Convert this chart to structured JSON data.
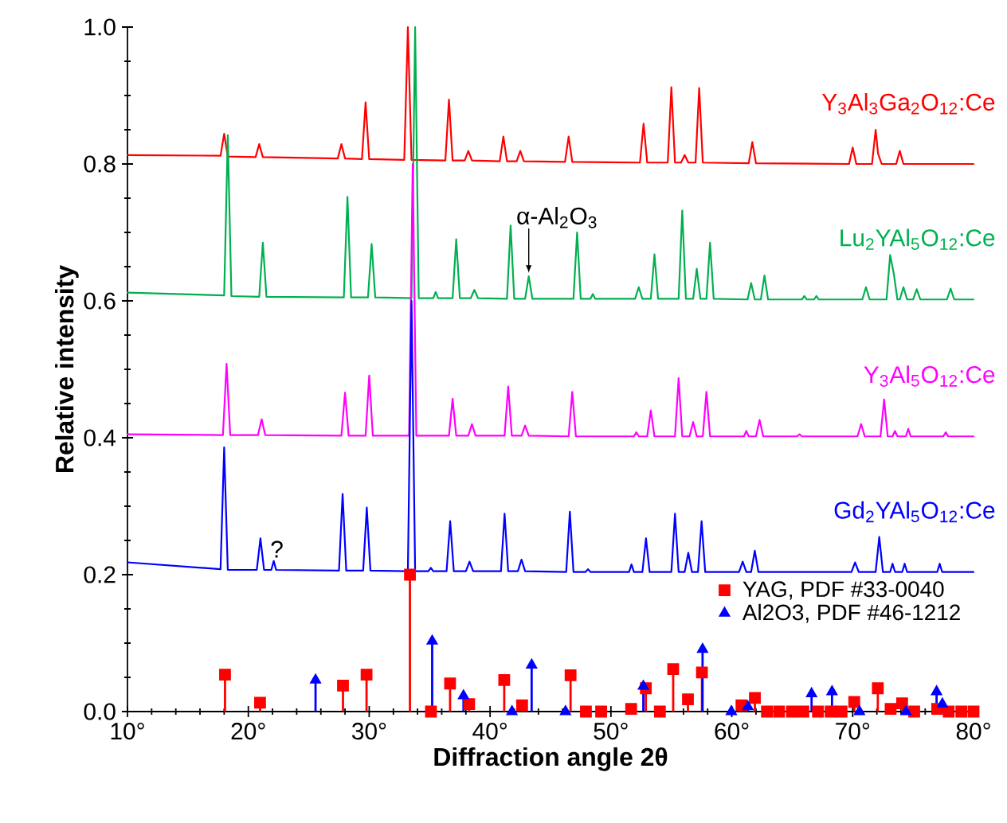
{
  "chart_data": {
    "type": "line",
    "xlabel": "Diffraction angle 2θ",
    "ylabel": "Relative intensity",
    "xlim": [
      10,
      80
    ],
    "ylim": [
      0,
      1
    ],
    "xticks": [
      {
        "value": 10,
        "label": "10°"
      },
      {
        "value": 20,
        "label": "20°"
      },
      {
        "value": 30,
        "label": "30°"
      },
      {
        "value": 40,
        "label": "40°"
      },
      {
        "value": 50,
        "label": "50°"
      },
      {
        "value": 60,
        "label": "60°"
      },
      {
        "value": 70,
        "label": "70°"
      },
      {
        "value": 80,
        "label": "80°"
      }
    ],
    "yticks": [
      {
        "value": 0,
        "label": "0.0"
      },
      {
        "value": 0.2,
        "label": "0.2"
      },
      {
        "value": 0.4,
        "label": "0.4"
      },
      {
        "value": 0.6,
        "label": "0.6"
      },
      {
        "value": 0.8,
        "label": "0.8"
      },
      {
        "value": 1,
        "label": "1.0"
      }
    ],
    "legend": "right",
    "annotations": [
      {
        "text": "α-Al$_{2}$O$_{3}$",
        "x": 43.2,
        "y": 0.636
      },
      {
        "text": "?",
        "x": 22.1,
        "y": 0.22
      }
    ],
    "series": [
      {
        "name": "Y$_{3}$Al$_{3}$Ga$_{2}$O$_{12}$:Ce",
        "color": "#ff0000",
        "x": [
          10,
          17.7,
          18.0,
          18.3,
          20.6,
          20.9,
          21.2,
          27.4,
          27.7,
          28.0,
          29.4,
          29.7,
          30.0,
          32.9,
          33.2,
          33.5,
          36.3,
          36.6,
          36.9,
          37.9,
          38.2,
          38.5,
          40.8,
          41.1,
          41.4,
          42.2,
          42.5,
          42.8,
          46.2,
          46.5,
          46.8,
          52.4,
          52.7,
          53.0,
          54.7,
          55.0,
          55.3,
          55.8,
          56.1,
          56.4,
          57.0,
          57.3,
          57.6,
          61.4,
          61.7,
          62.0,
          69.7,
          70.0,
          70.3,
          71.6,
          71.9,
          72.1,
          72.4,
          73.6,
          73.9,
          74.2,
          80
        ],
        "values": [
          0.813,
          0.812,
          0.844,
          0.811,
          0.81,
          0.829,
          0.81,
          0.808,
          0.829,
          0.808,
          0.807,
          0.89,
          0.807,
          0.806,
          1.0,
          0.806,
          0.805,
          0.894,
          0.805,
          0.805,
          0.819,
          0.805,
          0.804,
          0.84,
          0.804,
          0.804,
          0.819,
          0.804,
          0.803,
          0.84,
          0.803,
          0.802,
          0.859,
          0.802,
          0.802,
          0.912,
          0.802,
          0.802,
          0.813,
          0.802,
          0.802,
          0.911,
          0.802,
          0.801,
          0.832,
          0.801,
          0.8,
          0.824,
          0.8,
          0.8,
          0.85,
          0.815,
          0.8,
          0.8,
          0.819,
          0.8,
          0.8
        ]
      },
      {
        "name": "Lu$_{2}$YAl$_{5}$O$_{12}$:Ce",
        "color": "#00b050",
        "x": [
          10,
          18.0,
          18.3,
          18.6,
          20.9,
          21.2,
          21.5,
          27.9,
          28.2,
          28.5,
          29.9,
          30.2,
          30.5,
          33.5,
          33.8,
          34.1,
          35.3,
          35.5,
          35.7,
          36.9,
          37.2,
          37.5,
          38.4,
          38.7,
          39.0,
          41.4,
          41.7,
          42.0,
          42.9,
          43.2,
          43.5,
          46.9,
          47.2,
          47.5,
          48.3,
          48.5,
          48.7,
          52.0,
          52.3,
          52.6,
          53.3,
          53.6,
          53.9,
          55.6,
          55.9,
          56.2,
          56.8,
          57.1,
          57.4,
          57.9,
          58.2,
          58.5,
          61.3,
          61.6,
          61.9,
          62.4,
          62.7,
          63.0,
          65.8,
          66.0,
          66.2,
          66.8,
          67.0,
          67.2,
          70.8,
          71.1,
          71.4,
          72.8,
          73.1,
          73.4,
          73.7,
          73.9,
          74.2,
          74.5,
          75.0,
          75.3,
          75.6,
          77.8,
          78.1,
          78.4,
          80
        ],
        "values": [
          0.612,
          0.608,
          0.842,
          0.607,
          0.606,
          0.685,
          0.606,
          0.605,
          0.752,
          0.605,
          0.605,
          0.683,
          0.605,
          0.604,
          1.0,
          0.604,
          0.604,
          0.613,
          0.604,
          0.604,
          0.69,
          0.604,
          0.604,
          0.616,
          0.604,
          0.603,
          0.71,
          0.603,
          0.603,
          0.636,
          0.603,
          0.603,
          0.7,
          0.603,
          0.603,
          0.61,
          0.603,
          0.603,
          0.62,
          0.603,
          0.603,
          0.668,
          0.603,
          0.603,
          0.732,
          0.603,
          0.603,
          0.647,
          0.603,
          0.603,
          0.685,
          0.603,
          0.602,
          0.626,
          0.602,
          0.602,
          0.637,
          0.602,
          0.602,
          0.607,
          0.602,
          0.602,
          0.607,
          0.602,
          0.602,
          0.62,
          0.602,
          0.602,
          0.667,
          0.64,
          0.602,
          0.602,
          0.62,
          0.602,
          0.602,
          0.617,
          0.602,
          0.602,
          0.618,
          0.602,
          0.602
        ]
      },
      {
        "name": "Y$_{3}$Al$_{5}$O$_{12}$:Ce",
        "color": "#ff00ff",
        "x": [
          10,
          17.9,
          18.2,
          18.5,
          20.8,
          21.1,
          21.4,
          27.7,
          28.0,
          28.3,
          29.7,
          30.0,
          30.3,
          33.3,
          33.6,
          33.9,
          36.6,
          36.9,
          37.2,
          38.2,
          38.5,
          38.8,
          41.2,
          41.5,
          41.8,
          42.6,
          42.9,
          43.2,
          46.5,
          46.8,
          47.1,
          51.9,
          52.1,
          52.3,
          53.0,
          53.3,
          53.6,
          55.3,
          55.6,
          55.9,
          56.5,
          56.8,
          57.1,
          57.6,
          57.9,
          58.2,
          61.0,
          61.2,
          61.4,
          62.0,
          62.3,
          62.6,
          65.4,
          65.6,
          65.8,
          70.4,
          70.7,
          71.0,
          72.3,
          72.6,
          72.9,
          73.3,
          73.5,
          73.7,
          74.4,
          74.6,
          74.8,
          77.5,
          77.7,
          77.9,
          80
        ],
        "values": [
          0.405,
          0.404,
          0.508,
          0.404,
          0.404,
          0.427,
          0.404,
          0.403,
          0.466,
          0.403,
          0.403,
          0.491,
          0.403,
          0.403,
          0.8,
          0.403,
          0.403,
          0.457,
          0.403,
          0.403,
          0.42,
          0.403,
          0.403,
          0.475,
          0.403,
          0.403,
          0.418,
          0.403,
          0.402,
          0.467,
          0.402,
          0.402,
          0.408,
          0.402,
          0.402,
          0.44,
          0.402,
          0.402,
          0.487,
          0.402,
          0.402,
          0.423,
          0.402,
          0.402,
          0.467,
          0.402,
          0.402,
          0.41,
          0.402,
          0.402,
          0.426,
          0.402,
          0.402,
          0.405,
          0.402,
          0.402,
          0.42,
          0.402,
          0.402,
          0.456,
          0.402,
          0.402,
          0.41,
          0.402,
          0.402,
          0.413,
          0.402,
          0.402,
          0.408,
          0.402,
          0.402
        ]
      },
      {
        "name": "Gd$_{2}$YAl$_{5}$O$_{12}$:Ce",
        "color": "#0000ff",
        "x": [
          10,
          17.7,
          18.0,
          18.3,
          20.7,
          21.0,
          21.3,
          21.9,
          22.1,
          22.3,
          27.5,
          27.8,
          28.1,
          29.5,
          29.8,
          30.1,
          33.2,
          33.5,
          33.8,
          34.9,
          35.1,
          35.3,
          36.4,
          36.7,
          37.0,
          38.0,
          38.3,
          38.6,
          40.9,
          41.2,
          41.5,
          42.3,
          42.6,
          42.9,
          46.3,
          46.6,
          46.9,
          47.9,
          48.1,
          48.3,
          51.5,
          51.7,
          51.9,
          52.6,
          52.9,
          53.2,
          55.0,
          55.3,
          55.6,
          56.1,
          56.4,
          56.7,
          57.2,
          57.5,
          57.8,
          60.6,
          60.9,
          61.2,
          61.6,
          61.9,
          62.2,
          69.9,
          70.2,
          70.5,
          71.9,
          72.2,
          72.5,
          73.1,
          73.3,
          73.5,
          74.1,
          74.3,
          74.5,
          77.0,
          77.2,
          77.4,
          80
        ],
        "values": [
          0.218,
          0.208,
          0.386,
          0.207,
          0.207,
          0.253,
          0.207,
          0.207,
          0.22,
          0.207,
          0.206,
          0.318,
          0.206,
          0.206,
          0.298,
          0.206,
          0.205,
          0.6,
          0.205,
          0.205,
          0.21,
          0.205,
          0.205,
          0.278,
          0.205,
          0.205,
          0.219,
          0.205,
          0.205,
          0.289,
          0.205,
          0.205,
          0.222,
          0.205,
          0.204,
          0.292,
          0.204,
          0.204,
          0.208,
          0.204,
          0.204,
          0.215,
          0.204,
          0.204,
          0.253,
          0.204,
          0.204,
          0.289,
          0.204,
          0.204,
          0.232,
          0.204,
          0.204,
          0.278,
          0.204,
          0.204,
          0.219,
          0.204,
          0.204,
          0.235,
          0.204,
          0.204,
          0.218,
          0.204,
          0.204,
          0.255,
          0.204,
          0.204,
          0.216,
          0.204,
          0.204,
          0.216,
          0.204,
          0.204,
          0.216,
          0.204,
          0.204
        ]
      },
      {
        "name": "YAG, PDF #33-0040",
        "type": "lollipop",
        "marker": "square",
        "color": "#ff0000",
        "x": [
          18.07,
          20.97,
          27.83,
          29.78,
          33.37,
          35.11,
          36.69,
          38.27,
          41.17,
          42.65,
          46.66,
          47.93,
          49.19,
          51.67,
          52.89,
          54.05,
          55.15,
          56.37,
          57.53,
          60.8,
          61.91,
          62.91,
          63.91,
          64.97,
          65.92,
          67.13,
          68.18,
          69.08,
          70.13,
          72.08,
          73.14,
          74.09,
          75.09,
          76.99,
          77.94,
          78.99,
          80.0
        ],
        "values": [
          0.054,
          0.013,
          0.038,
          0.054,
          0.2,
          0,
          0.041,
          0.011,
          0.046,
          0.009,
          0.053,
          0,
          0,
          0.004,
          0.034,
          0,
          0.062,
          0.018,
          0.057,
          0.009,
          0.02,
          0,
          0,
          0,
          0,
          0,
          0,
          0,
          0.014,
          0.034,
          0.004,
          0.012,
          0,
          0.004,
          0,
          0,
          0
        ]
      },
      {
        "name": "Al2O3, PDF #46-1212",
        "type": "lollipop",
        "marker": "triangle",
        "color": "#0000ff",
        "x": [
          25.56,
          35.21,
          37.8,
          41.81,
          43.44,
          46.24,
          52.68,
          57.58,
          59.96,
          61.33,
          66.6,
          68.29,
          70.56,
          74.41,
          76.94,
          77.42
        ],
        "values": [
          0.046,
          0.103,
          0.023,
          0,
          0.068,
          0,
          0.037,
          0.091,
          0,
          0.007,
          0.026,
          0.029,
          0,
          0,
          0.029,
          0.011
        ]
      }
    ]
  }
}
